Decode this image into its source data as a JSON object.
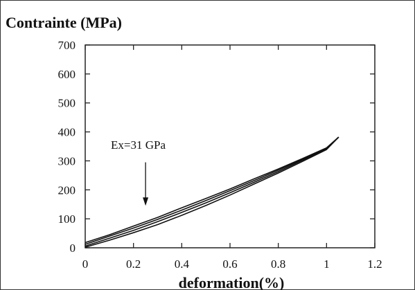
{
  "chart_data": {
    "type": "line",
    "title": "",
    "xlabel": "deformation(%)",
    "ylabel": "Contrainte (MPa)",
    "xlim": [
      0,
      1.2
    ],
    "ylim": [
      0,
      700
    ],
    "x_ticks": [
      "0",
      "0.2",
      "0.4",
      "0.6",
      "0.8",
      "1",
      "1.2"
    ],
    "y_ticks": [
      "0",
      "100",
      "200",
      "300",
      "400",
      "500",
      "600",
      "700"
    ],
    "grid": false,
    "legend": "none",
    "series": [
      {
        "x": [
          0,
          0.1,
          0.2,
          0.3,
          0.4,
          0.5,
          0.6,
          0.7,
          0.8,
          0.9,
          1.0,
          1.05
        ],
        "y": [
          18,
          45,
          75,
          105,
          138,
          170,
          203,
          238,
          272,
          308,
          345,
          382
        ]
      },
      {
        "x": [
          0,
          0.1,
          0.2,
          0.3,
          0.4,
          0.5,
          0.6,
          0.7,
          0.8,
          0.9,
          1.0,
          1.05
        ],
        "y": [
          12,
          40,
          68,
          98,
          130,
          163,
          197,
          232,
          268,
          305,
          343,
          382
        ]
      },
      {
        "x": [
          0,
          0.1,
          0.2,
          0.3,
          0.4,
          0.5,
          0.6,
          0.7,
          0.8,
          0.9,
          1.0,
          1.05
        ],
        "y": [
          6,
          33,
          60,
          90,
          122,
          155,
          190,
          226,
          263,
          302,
          341,
          382
        ]
      },
      {
        "x": [
          0,
          0.1,
          0.2,
          0.3,
          0.4,
          0.5,
          0.6,
          0.7,
          0.8,
          0.9,
          1.0,
          1.05
        ],
        "y": [
          2,
          26,
          52,
          80,
          112,
          146,
          182,
          220,
          258,
          298,
          339,
          382
        ]
      }
    ],
    "annotation": {
      "text": "Ex=31 GPa",
      "arrow_x": 0.25,
      "arrow_from_y": 295,
      "arrow_to_y": 145
    },
    "line_color": "#111111"
  }
}
